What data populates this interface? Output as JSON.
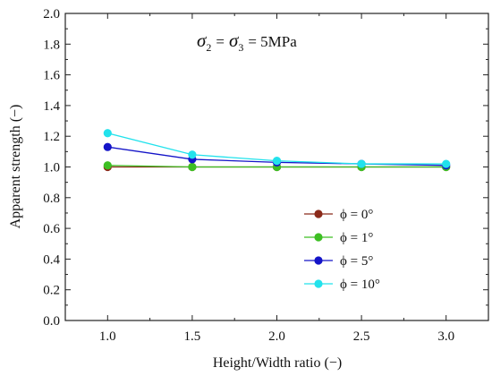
{
  "chart_data": {
    "type": "line",
    "xlabel": "Height/Width ratio (−)",
    "ylabel": "Apparent strength (−)",
    "x": [
      1.0,
      1.5,
      2.0,
      2.5,
      3.0
    ],
    "xticks": [
      "1.0",
      "1.5",
      "2.0",
      "2.5",
      "3.0"
    ],
    "yticks": [
      "0.0",
      "0.2",
      "0.4",
      "0.6",
      "0.8",
      "1.0",
      "1.2",
      "1.4",
      "1.6",
      "1.8",
      "2.0"
    ],
    "xlim": [
      0.75,
      3.25
    ],
    "ylim": [
      0,
      2.0
    ],
    "grid": false,
    "legend_position": "lower-right",
    "annotation": {
      "sigma_symbol": "σ",
      "sub_2": "2",
      "equals": "=",
      "sub_3": "3",
      "value": "= 5MPa"
    },
    "series": [
      {
        "name": "ϕ = 0°",
        "color": "#8B2A1A",
        "values": [
          1.0,
          1.0,
          1.0,
          1.0,
          1.0
        ]
      },
      {
        "name": "ϕ = 1°",
        "color": "#3DBF23",
        "values": [
          1.01,
          1.0,
          1.0,
          1.0,
          1.0
        ]
      },
      {
        "name": "ϕ = 5°",
        "color": "#1414C8",
        "values": [
          1.13,
          1.05,
          1.03,
          1.02,
          1.01
        ]
      },
      {
        "name": "ϕ = 10°",
        "color": "#22E2EC",
        "values": [
          1.22,
          1.08,
          1.04,
          1.02,
          1.02
        ]
      }
    ]
  }
}
